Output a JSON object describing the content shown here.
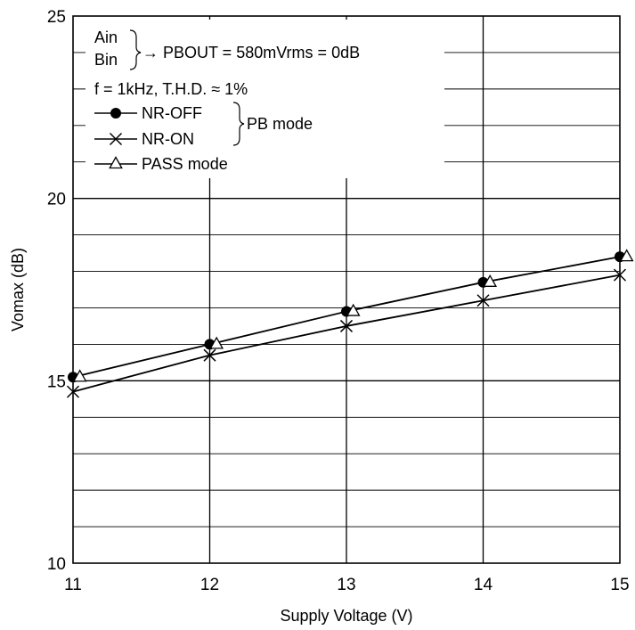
{
  "chart_data": {
    "type": "line",
    "xlabel": "Supply Voltage  (V)",
    "ylabel": "Vomax  (dB)",
    "xlim": [
      11,
      15
    ],
    "ylim": [
      10,
      25
    ],
    "x_ticks": [
      "11",
      "12",
      "13",
      "14",
      "15"
    ],
    "y_ticks": [
      "10",
      "15",
      "20",
      "25"
    ],
    "grid": true,
    "x": [
      11,
      12,
      13,
      14,
      15
    ],
    "series": [
      {
        "name": "NR-OFF",
        "marker": "filled-circle",
        "x": [
          11,
          12,
          13,
          14,
          15
        ],
        "values": [
          15.1,
          16.0,
          16.9,
          17.7,
          18.4
        ]
      },
      {
        "name": "NR-ON",
        "marker": "cross",
        "x": [
          11,
          12,
          13,
          14,
          15
        ],
        "values": [
          14.7,
          15.7,
          16.5,
          17.2,
          17.9
        ]
      },
      {
        "name": "PASS mode",
        "marker": "open-triangle",
        "x": [
          11.05,
          12.05,
          13.05,
          14.05,
          15.05
        ],
        "values": [
          15.1,
          16.0,
          16.9,
          17.7,
          18.4
        ]
      }
    ],
    "legend": {
      "placement": "top-left",
      "input_a": "Ain",
      "input_b": "Bin",
      "reference": "→ PBOUT = 580mVrms = 0dB",
      "conditions": "f = 1kHz, T.H.D. ≈ 1%",
      "group_label": "PB mode"
    },
    "colors": {
      "line": "#000000",
      "grid": "#000000",
      "background": "#ffffff"
    }
  }
}
